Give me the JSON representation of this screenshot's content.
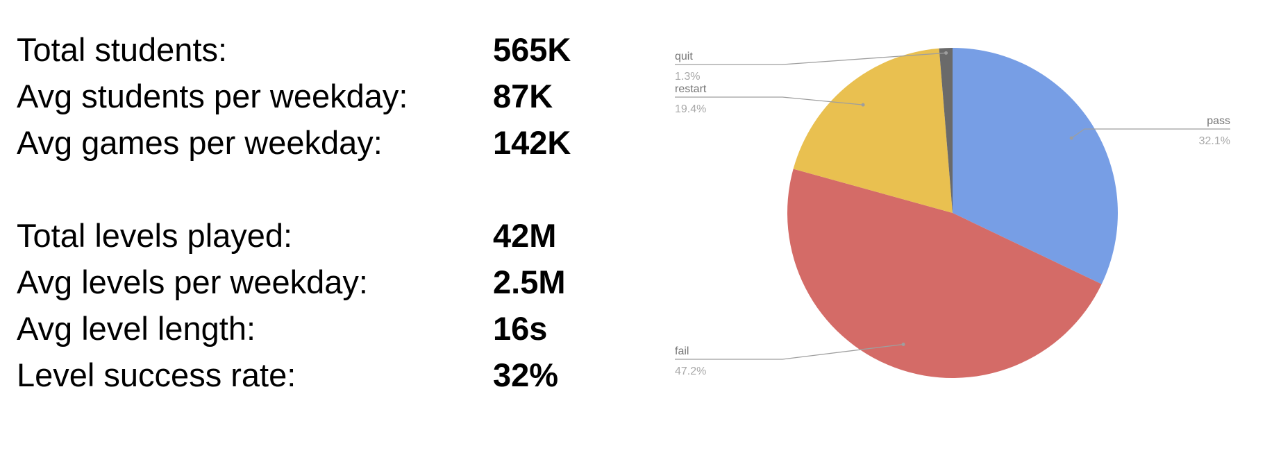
{
  "stats": {
    "group1": [
      {
        "label": "Total students:",
        "value": "565K"
      },
      {
        "label": "Avg students per weekday:",
        "value": "87K"
      },
      {
        "label": "Avg games per weekday:",
        "value": "142K"
      }
    ],
    "group2": [
      {
        "label": "Total levels played:",
        "value": "42M"
      },
      {
        "label": "Avg levels per weekday:",
        "value": "2.5M"
      },
      {
        "label": "Avg level length:",
        "value": "16s"
      },
      {
        "label": "Level success rate:",
        "value": "32%"
      }
    ]
  },
  "chart_data": {
    "type": "pie",
    "start_angle_deg": 0,
    "direction": "clockwise",
    "legend": "labels-with-leader-lines",
    "slices": [
      {
        "name": "pass",
        "value": 32.1,
        "label": "32.1%",
        "color": "#779ee5"
      },
      {
        "name": "fail",
        "value": 47.2,
        "label": "47.2%",
        "color": "#d46b67"
      },
      {
        "name": "restart",
        "value": 19.4,
        "label": "19.4%",
        "color": "#e9c050"
      },
      {
        "name": "quit",
        "value": 1.3,
        "label": "1.3%",
        "color": "#6a6a6a"
      }
    ]
  }
}
